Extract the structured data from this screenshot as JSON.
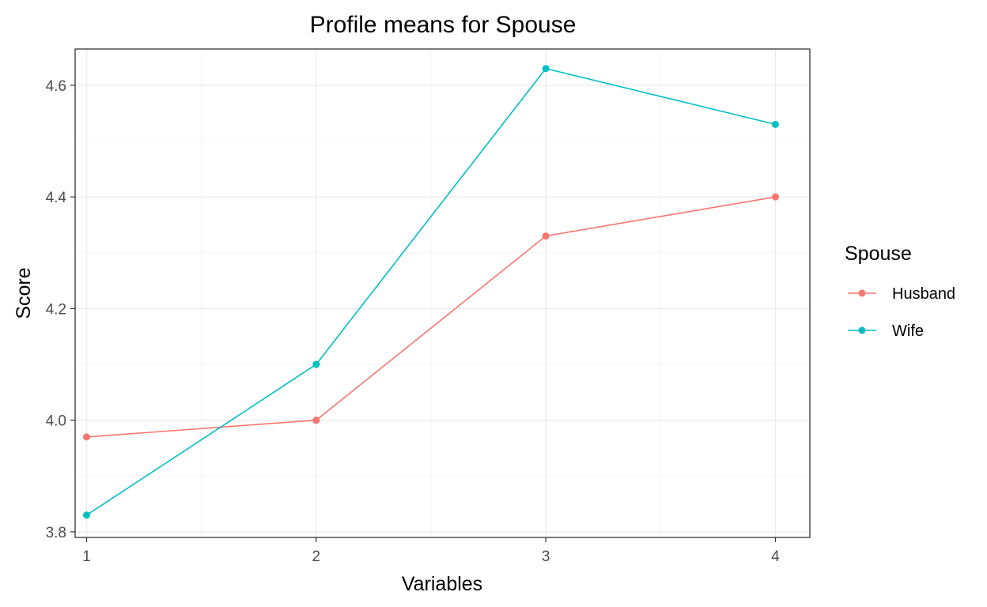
{
  "chart_data": {
    "type": "line",
    "title": "Profile means for Spouse",
    "xlabel": "Variables",
    "ylabel": "Score",
    "x": [
      1,
      2,
      3,
      4
    ],
    "x_tick_labels": [
      "1",
      "2",
      "3",
      "4"
    ],
    "xlim": [
      0.95,
      4.15
    ],
    "ylim": [
      3.79,
      4.665
    ],
    "y_ticks": [
      3.8,
      4.0,
      4.2,
      4.4,
      4.6
    ],
    "y_tick_labels": [
      "3.8",
      "4.0",
      "4.2",
      "4.4",
      "4.6"
    ],
    "grid": true,
    "legend": {
      "title": "Spouse",
      "placement": "right"
    },
    "series": [
      {
        "name": "Husband",
        "color": "#F8766D",
        "values": [
          3.97,
          4.0,
          4.33,
          4.4
        ]
      },
      {
        "name": "Wife",
        "color": "#00BFC4",
        "values": [
          3.83,
          4.1,
          4.63,
          4.53
        ]
      }
    ]
  }
}
